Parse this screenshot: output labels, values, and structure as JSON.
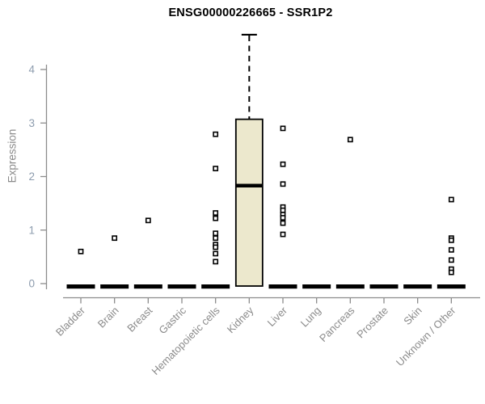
{
  "chart_data": {
    "type": "boxplot",
    "title": "ENSG00000226665 - SSR1P2",
    "ylabel": "Expression",
    "xlabel": "",
    "ylim": [
      0,
      4.65
    ],
    "yticks": [
      0,
      1,
      2,
      3,
      4
    ],
    "grid": false,
    "legend": "none",
    "categories": [
      "Bladder",
      "Brain",
      "Breast",
      "Gastric",
      "Hematopoietic cells",
      "Kidney",
      "Liver",
      "Lung",
      "Pancreas",
      "Prostate",
      "Skin",
      "Unknown / Other"
    ],
    "boxes": [
      {
        "category": "Bladder",
        "q1": 0,
        "median": 0,
        "q3": 0,
        "whisker_low": 0,
        "whisker_high": 0,
        "outliers": [
          0.6
        ]
      },
      {
        "category": "Brain",
        "q1": 0,
        "median": 0,
        "q3": 0,
        "whisker_low": 0,
        "whisker_high": 0,
        "outliers": [
          0.85
        ]
      },
      {
        "category": "Breast",
        "q1": 0,
        "median": 0,
        "q3": 0,
        "whisker_low": 0,
        "whisker_high": 0,
        "outliers": [
          1.18
        ]
      },
      {
        "category": "Gastric",
        "q1": 0,
        "median": 0,
        "q3": 0,
        "whisker_low": 0,
        "whisker_high": 0,
        "outliers": []
      },
      {
        "category": "Hematopoietic cells",
        "q1": 0,
        "median": 0,
        "q3": 0,
        "whisker_low": 0,
        "whisker_high": 0,
        "outliers": [
          2.79,
          2.15,
          1.32,
          1.22,
          0.94,
          0.85,
          0.73,
          0.68,
          0.56,
          0.41
        ]
      },
      {
        "category": "Kidney",
        "q1": 0,
        "median": 1.83,
        "q3": 3.07,
        "whisker_low": 0,
        "whisker_high": 4.65,
        "outliers": []
      },
      {
        "category": "Liver",
        "q1": 0,
        "median": 0,
        "q3": 0,
        "whisker_low": 0,
        "whisker_high": 0,
        "outliers": [
          2.9,
          2.23,
          1.86,
          1.43,
          1.37,
          1.29,
          1.23,
          1.13,
          0.92
        ]
      },
      {
        "category": "Lung",
        "q1": 0,
        "median": 0,
        "q3": 0,
        "whisker_low": 0,
        "whisker_high": 0,
        "outliers": []
      },
      {
        "category": "Pancreas",
        "q1": 0,
        "median": 0,
        "q3": 0,
        "whisker_low": 0,
        "whisker_high": 0,
        "outliers": [
          2.69
        ]
      },
      {
        "category": "Prostate",
        "q1": 0,
        "median": 0,
        "q3": 0,
        "whisker_low": 0,
        "whisker_high": 0,
        "outliers": []
      },
      {
        "category": "Skin",
        "q1": 0,
        "median": 0,
        "q3": 0,
        "whisker_low": 0,
        "whisker_high": 0,
        "outliers": []
      },
      {
        "category": "Unknown / Other",
        "q1": 0,
        "median": 0,
        "q3": 0,
        "whisker_low": 0,
        "whisker_high": 0,
        "outliers": [
          1.57,
          0.85,
          0.81,
          0.63,
          0.44,
          0.27,
          0.21
        ]
      }
    ],
    "colors": {
      "box_fill": "#ece8cd",
      "box_border": "#000000",
      "median_line": "#000000",
      "whisker": "#000000",
      "outlier_stroke": "#000000",
      "outlier_fill": "#ffffff",
      "axis": "#8c8c8c",
      "y_tick_label": "#8d9cae",
      "category_label": "#8b8b8b",
      "title": "#000000",
      "background": "#ffffff"
    }
  }
}
